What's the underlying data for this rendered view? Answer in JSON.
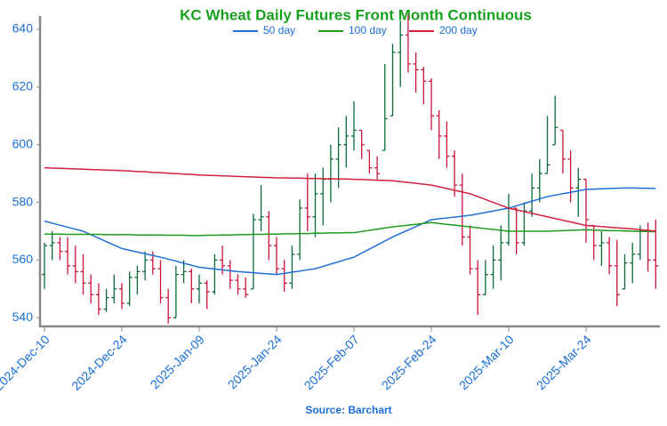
{
  "chart_data": {
    "type": "ohlc",
    "title": "KC Wheat Daily Futures Front Month Continuous",
    "source": "Source: Barchart",
    "categories": [
      "2024-Dec-10",
      null,
      null,
      null,
      null,
      null,
      null,
      null,
      null,
      null,
      "2024-Dec-24",
      null,
      null,
      null,
      null,
      null,
      null,
      null,
      null,
      null,
      "2025-Jan-09",
      null,
      null,
      null,
      null,
      null,
      null,
      null,
      null,
      null,
      "2025-Jan-24",
      null,
      null,
      null,
      null,
      null,
      null,
      null,
      null,
      null,
      "2025-Feb-07",
      null,
      null,
      null,
      null,
      null,
      null,
      null,
      null,
      null,
      "2025-Feb-24",
      null,
      null,
      null,
      null,
      null,
      null,
      null,
      null,
      null,
      "2025-Mar-10",
      null,
      null,
      null,
      null,
      null,
      null,
      null,
      null,
      null,
      "2025-Mar-24",
      null,
      null,
      null,
      null,
      null,
      null,
      null,
      null,
      null
    ],
    "open": [
      555,
      565,
      566,
      563,
      558,
      556,
      552,
      548,
      543,
      547,
      550,
      545,
      554,
      556,
      560,
      557,
      547,
      540,
      555,
      556,
      550,
      552,
      549,
      560,
      558,
      553,
      550,
      550,
      574,
      575,
      565,
      557,
      552,
      562,
      578,
      575,
      583,
      588,
      595,
      600,
      603,
      605,
      598,
      592,
      598,
      610,
      632,
      638,
      628,
      626,
      622,
      610,
      603,
      596,
      586,
      568,
      557,
      548,
      555,
      560,
      566,
      578,
      566,
      577,
      585,
      590,
      600,
      605,
      595,
      585,
      588,
      572,
      565,
      566,
      558,
      550,
      559,
      562,
      570,
      560
    ],
    "high": [
      566,
      570,
      568,
      568,
      565,
      562,
      555,
      552,
      550,
      555,
      552,
      556,
      558,
      563,
      563,
      560,
      550,
      558,
      560,
      557,
      555,
      553,
      562,
      565,
      560,
      555,
      554,
      576,
      586,
      577,
      568,
      560,
      565,
      581,
      590,
      590,
      592,
      600,
      606,
      610,
      615,
      605,
      598,
      596,
      628,
      635,
      643,
      645,
      632,
      627,
      623,
      612,
      608,
      598,
      590,
      572,
      560,
      560,
      565,
      572,
      583,
      578,
      580,
      590,
      595,
      610,
      617,
      605,
      598,
      592,
      588,
      572,
      570,
      568,
      567,
      562,
      566,
      572,
      573,
      574
    ],
    "low": [
      550,
      560,
      560,
      555,
      552,
      548,
      545,
      541,
      542,
      545,
      543,
      544,
      548,
      553,
      555,
      545,
      538,
      540,
      552,
      545,
      545,
      543,
      548,
      555,
      550,
      548,
      547,
      550,
      570,
      560,
      555,
      549,
      550,
      560,
      570,
      568,
      572,
      580,
      585,
      592,
      598,
      595,
      590,
      588,
      598,
      610,
      620,
      625,
      618,
      614,
      605,
      595,
      592,
      582,
      565,
      555,
      541,
      548,
      550,
      553,
      565,
      562,
      565,
      575,
      580,
      590,
      600,
      590,
      580,
      575,
      566,
      560,
      558,
      555,
      544,
      550,
      552,
      560,
      556,
      550
    ],
    "close": [
      565,
      566,
      563,
      558,
      556,
      552,
      548,
      543,
      547,
      550,
      545,
      554,
      556,
      560,
      557,
      547,
      540,
      555,
      556,
      550,
      552,
      549,
      560,
      558,
      553,
      550,
      548,
      574,
      575,
      565,
      557,
      552,
      562,
      578,
      575,
      583,
      588,
      595,
      600,
      603,
      605,
      600,
      592,
      590,
      609,
      632,
      638,
      628,
      626,
      622,
      610,
      603,
      596,
      586,
      568,
      557,
      548,
      555,
      560,
      566,
      578,
      566,
      577,
      585,
      590,
      593,
      606,
      595,
      585,
      588,
      574,
      565,
      566,
      558,
      548,
      559,
      562,
      570,
      560,
      558
    ],
    "up_color": "#0b6b3a",
    "down_color": "#c8143c",
    "series": [
      {
        "name": "50 day",
        "color": "#1f6fd6",
        "values": [
          573.5,
          572.8,
          572.1,
          571.4,
          570.7,
          570.0,
          568.8,
          567.6,
          566.4,
          565.2,
          564.0,
          563.4,
          562.8,
          562.2,
          561.6,
          561.0,
          560.3,
          559.6,
          558.9,
          558.2,
          557.5,
          557.2,
          556.9,
          556.6,
          556.3,
          556.0,
          555.8,
          555.6,
          555.4,
          555.2,
          555.0,
          555.4,
          555.8,
          556.2,
          556.6,
          557.0,
          557.8,
          558.6,
          559.4,
          560.2,
          561.0,
          562.4,
          563.8,
          565.2,
          566.6,
          568.0,
          569.2,
          570.4,
          571.6,
          572.8,
          574.0,
          574.3,
          574.6,
          574.9,
          575.2,
          575.5,
          576.0,
          576.5,
          577.0,
          577.5,
          578.0,
          578.8,
          579.6,
          580.4,
          581.2,
          582.0,
          582.5,
          583.0,
          583.5,
          584.0,
          584.5,
          584.6,
          584.7,
          584.8,
          584.9,
          585.0,
          585.0,
          584.9,
          584.9,
          584.8
        ]
      },
      {
        "name": "100 day",
        "color": "#1e9a1e",
        "values": [
          569.0,
          569.0,
          569.0,
          568.9,
          568.9,
          568.9,
          568.9,
          568.9,
          568.8,
          568.8,
          568.8,
          568.8,
          568.7,
          568.7,
          568.7,
          568.7,
          568.6,
          568.6,
          568.6,
          568.5,
          568.5,
          568.6,
          568.6,
          568.7,
          568.7,
          568.8,
          568.8,
          568.9,
          568.9,
          569.0,
          569.0,
          569.1,
          569.1,
          569.2,
          569.2,
          569.3,
          569.3,
          569.4,
          569.4,
          569.5,
          569.5,
          569.9,
          570.3,
          570.7,
          571.1,
          571.5,
          571.8,
          572.1,
          572.4,
          572.7,
          573.0,
          572.7,
          572.4,
          572.1,
          571.8,
          571.5,
          571.2,
          570.9,
          570.6,
          570.3,
          570.0,
          570.0,
          570.0,
          570.0,
          570.0,
          570.0,
          570.1,
          570.2,
          570.3,
          570.4,
          570.5,
          570.4,
          570.3,
          570.2,
          570.2,
          570.1,
          570.0,
          569.9,
          569.9,
          569.8
        ]
      },
      {
        "name": "200 day",
        "color": "#d0203c",
        "values": [
          592.0,
          591.9,
          591.8,
          591.7,
          591.6,
          591.5,
          591.4,
          591.3,
          591.2,
          591.1,
          591.0,
          590.9,
          590.7,
          590.6,
          590.4,
          590.3,
          590.1,
          590.0,
          589.8,
          589.7,
          589.5,
          589.4,
          589.3,
          589.2,
          589.1,
          589.0,
          588.9,
          588.8,
          588.7,
          588.6,
          588.5,
          588.5,
          588.4,
          588.4,
          588.3,
          588.3,
          588.2,
          588.2,
          588.1,
          588.1,
          588.0,
          587.9,
          587.8,
          587.7,
          587.6,
          587.5,
          587.2,
          586.9,
          586.6,
          586.3,
          586.0,
          585.4,
          584.8,
          584.2,
          583.6,
          583.0,
          582.0,
          581.0,
          580.0,
          579.0,
          578.0,
          577.4,
          576.8,
          576.2,
          575.6,
          575.0,
          574.4,
          573.8,
          573.2,
          572.6,
          572.0,
          571.8,
          571.6,
          571.4,
          571.2,
          571.0,
          570.8,
          570.5,
          570.3,
          570.0
        ]
      }
    ],
    "ylim": [
      537,
      644
    ],
    "yticks": [
      540,
      560,
      580,
      600,
      620,
      640
    ]
  }
}
